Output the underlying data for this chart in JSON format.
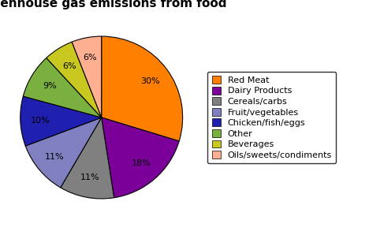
{
  "title": "Greenhouse gas emissions from food",
  "labels": [
    "Red Meat",
    "Dairy Products",
    "Cereals/carbs",
    "Fruit/vegetables",
    "Chicken/fish/eggs",
    "Other",
    "Beverages",
    "Oils/sweets/condiments"
  ],
  "values": [
    30,
    18,
    11,
    11,
    10,
    9,
    6,
    6
  ],
  "colors": [
    "#FF8000",
    "#7B0099",
    "#808080",
    "#8080C0",
    "#2020B0",
    "#7AB040",
    "#C8C820",
    "#FFB090"
  ],
  "startangle": 90,
  "background_color": "#ffffff",
  "title_fontsize": 11,
  "legend_fontsize": 8,
  "pct_fontsize": 8
}
